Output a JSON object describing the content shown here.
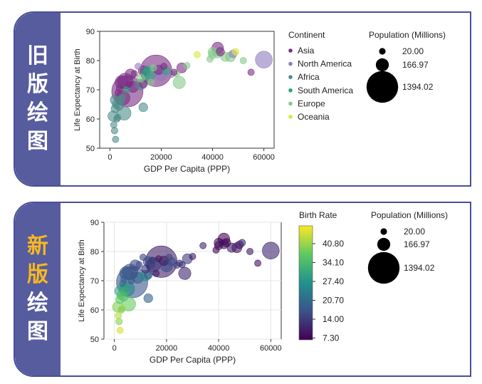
{
  "panels": {
    "old": {
      "label_chars": [
        "旧",
        "版",
        "绘",
        "图"
      ]
    },
    "new": {
      "label_chars": [
        "新",
        "版",
        "绘",
        "图"
      ]
    }
  },
  "colors": {
    "Asia": "#7b2d84",
    "North America": "#8f7cbf",
    "Africa": "#4d8c8a",
    "South America": "#2aa77f",
    "Europe": "#86c98a",
    "Oceania": "#d8e83c",
    "frame": "#4a4f9a"
  },
  "chart_data": [
    {
      "id": "old",
      "type": "scatter",
      "xlabel": "GDP Per Capita  (PPP)",
      "ylabel": "Life Expectancy at Birth",
      "xlim": [
        -4000,
        64000
      ],
      "ylim": [
        50,
        90
      ],
      "xticks": [
        0,
        20000,
        40000,
        60000
      ],
      "yticks": [
        50,
        60,
        70,
        80,
        90
      ],
      "color_by": "continent",
      "legend": {
        "title": "Continent",
        "position": "right",
        "entries": [
          "Asia",
          "North America",
          "Africa",
          "South America",
          "Europe",
          "Oceania"
        ]
      },
      "size_legend": {
        "title": "Population (Millions)",
        "labels": [
          "20.00",
          "166.97",
          "1394.02"
        ]
      }
    },
    {
      "id": "new",
      "type": "scatter",
      "xlabel": "GDP Per Capita  (PPP)",
      "ylabel": "Life Expectancy at Birth",
      "xlim": [
        -4000,
        64000
      ],
      "ylim": [
        50,
        90
      ],
      "xticks": [
        0,
        20000,
        40000,
        60000
      ],
      "yticks": [
        50,
        60,
        70,
        80,
        90
      ],
      "color_by": "birth_rate",
      "colorbar": {
        "title": "Birth Rate",
        "min": 7.3,
        "max": 47.5,
        "tick_labels": [
          "40.80",
          "34.10",
          "27.40",
          "20.70",
          "14.00",
          "7.30"
        ],
        "colors": [
          "#440154",
          "#3b528b",
          "#21918c",
          "#5ec962",
          "#fde725"
        ]
      },
      "size_legend": {
        "title": "Population (Millions)",
        "labels": [
          "20.00",
          "166.97",
          "1394.02"
        ]
      }
    }
  ],
  "points": [
    {
      "gdp": 18000,
      "life": 76.5,
      "pop": 1394,
      "continent": "Asia",
      "birth": 11
    },
    {
      "gdp": 6800,
      "life": 69.5,
      "pop": 1366,
      "continent": "Asia",
      "birth": 18
    },
    {
      "gdp": 6000,
      "life": 73,
      "pop": 270,
      "continent": "Asia",
      "birth": 17
    },
    {
      "gdp": 60000,
      "life": 80.3,
      "pop": 330,
      "continent": "North America",
      "birth": 12
    },
    {
      "gdp": 15000,
      "life": 75.5,
      "pop": 212,
      "continent": "South America",
      "birth": 14
    },
    {
      "gdp": 5000,
      "life": 67.2,
      "pop": 217,
      "continent": "Asia",
      "birth": 25
    },
    {
      "gdp": 5500,
      "life": 62,
      "pop": 201,
      "continent": "Africa",
      "birth": 38
    },
    {
      "gdp": 4500,
      "life": 72.6,
      "pop": 163,
      "continent": "Asia",
      "birth": 18
    },
    {
      "gdp": 27000,
      "life": 72.5,
      "pop": 145,
      "continent": "Europe",
      "birth": 12
    },
    {
      "gdp": 20000,
      "life": 75,
      "pop": 128,
      "continent": "North America",
      "birth": 17
    },
    {
      "gdp": 42000,
      "life": 84.3,
      "pop": 126,
      "continent": "Asia",
      "birth": 7.3
    },
    {
      "gdp": 2300,
      "life": 66.5,
      "pop": 112,
      "continent": "Africa",
      "birth": 31
    },
    {
      "gdp": 9000,
      "life": 71,
      "pop": 108,
      "continent": "Asia",
      "birth": 20
    },
    {
      "gdp": 8000,
      "life": 75.3,
      "pop": 96,
      "continent": "Asia",
      "birth": 16
    },
    {
      "gdp": 12000,
      "life": 71.8,
      "pop": 100,
      "continent": "Africa",
      "birth": 26
    },
    {
      "gdp": 1200,
      "life": 61,
      "pop": 87,
      "continent": "Africa",
      "birth": 40
    },
    {
      "gdp": 47000,
      "life": 81.3,
      "pop": 83,
      "continent": "Europe",
      "birth": 9
    },
    {
      "gdp": 13000,
      "life": 76.5,
      "pop": 82,
      "continent": "Asia",
      "birth": 17
    },
    {
      "gdp": 28000,
      "life": 77.5,
      "pop": 82,
      "continent": "Asia",
      "birth": 15
    },
    {
      "gdp": 19000,
      "life": 76.8,
      "pop": 69,
      "continent": "Asia",
      "birth": 10
    },
    {
      "gdp": 45000,
      "life": 81.3,
      "pop": 67,
      "continent": "Europe",
      "birth": 11
    },
    {
      "gdp": 42000,
      "life": 82.5,
      "pop": 67,
      "continent": "Europe",
      "birth": 11
    },
    {
      "gdp": 40000,
      "life": 83,
      "pop": 60,
      "continent": "Europe",
      "birth": 7.5
    },
    {
      "gdp": 3500,
      "life": 64.5,
      "pop": 58,
      "continent": "Africa",
      "birth": 36
    },
    {
      "gdp": 13000,
      "life": 64,
      "pop": 58,
      "continent": "Africa",
      "birth": 20
    },
    {
      "gdp": 14000,
      "life": 75.6,
      "pop": 50,
      "continent": "South America",
      "birth": 15
    },
    {
      "gdp": 43000,
      "life": 83,
      "pop": 51,
      "continent": "Asia",
      "birth": 7.5
    },
    {
      "gdp": 4000,
      "life": 66.3,
      "pop": 53,
      "continent": "Africa",
      "birth": 33
    },
    {
      "gdp": 2500,
      "life": 65,
      "pop": 45,
      "continent": "Africa",
      "birth": 35
    },
    {
      "gdp": 22000,
      "life": 76.5,
      "pop": 45,
      "continent": "South America",
      "birth": 17
    },
    {
      "gdp": 13000,
      "life": 72,
      "pop": 45,
      "continent": "Asia",
      "birth": 18
    },
    {
      "gdp": 2000,
      "life": 63.5,
      "pop": 42,
      "continent": "Africa",
      "birth": 37
    },
    {
      "gdp": 40000,
      "life": 82,
      "pop": 46,
      "continent": "Europe",
      "birth": 9
    },
    {
      "gdp": 12000,
      "life": 74,
      "pop": 44,
      "continent": "Europe",
      "birth": 13
    },
    {
      "gdp": 48000,
      "life": 82.3,
      "pop": 38,
      "continent": "North America",
      "birth": 10
    },
    {
      "gdp": 49000,
      "life": 83,
      "pop": 25,
      "continent": "Oceania",
      "birth": 12
    },
    {
      "gdp": 1800,
      "life": 56,
      "pop": 22,
      "continent": "Africa",
      "birth": 40
    },
    {
      "gdp": 2200,
      "life": 53,
      "pop": 20,
      "continent": "Africa",
      "birth": 45
    },
    {
      "gdp": 3000,
      "life": 60.5,
      "pop": 20,
      "continent": "Africa",
      "birth": 42
    },
    {
      "gdp": 2700,
      "life": 60,
      "pop": 20,
      "continent": "Africa",
      "birth": 39
    },
    {
      "gdp": 1500,
      "life": 58,
      "pop": 20,
      "continent": "Africa",
      "birth": 43
    },
    {
      "gdp": 3200,
      "life": 69,
      "pop": 20,
      "continent": "Asia",
      "birth": 22
    },
    {
      "gdp": 6500,
      "life": 70,
      "pop": 20,
      "continent": "South America",
      "birth": 19
    },
    {
      "gdp": 17000,
      "life": 77.5,
      "pop": 20,
      "continent": "Europe",
      "birth": 10
    },
    {
      "gdp": 24000,
      "life": 75.3,
      "pop": 20,
      "continent": "North America",
      "birth": 16
    },
    {
      "gdp": 30000,
      "life": 78.3,
      "pop": 20,
      "continent": "Europe",
      "birth": 10
    },
    {
      "gdp": 34000,
      "life": 82,
      "pop": 20,
      "continent": "Oceania",
      "birth": 12
    },
    {
      "gdp": 52000,
      "life": 80,
      "pop": 20,
      "continent": "Europe",
      "birth": 10
    },
    {
      "gdp": 55000,
      "life": 76,
      "pop": 20,
      "continent": "Asia",
      "birth": 9
    },
    {
      "gdp": 39000,
      "life": 80.5,
      "pop": 20,
      "continent": "Europe",
      "birth": 8
    },
    {
      "gdp": 7500,
      "life": 72,
      "pop": 20,
      "continent": "Asia",
      "birth": 18
    },
    {
      "gdp": 14500,
      "life": 77,
      "pop": 20,
      "continent": "South America",
      "birth": 14
    },
    {
      "gdp": 11000,
      "life": 78,
      "pop": 20,
      "continent": "North America",
      "birth": 15
    },
    {
      "gdp": 9500,
      "life": 75.5,
      "pop": 20,
      "continent": "Asia",
      "birth": 17
    },
    {
      "gdp": 4800,
      "life": 67.5,
      "pop": 20,
      "continent": "Africa",
      "birth": 30
    },
    {
      "gdp": 3700,
      "life": 70.5,
      "pop": 20,
      "continent": "Asia",
      "birth": 20
    },
    {
      "gdp": 26000,
      "life": 75.5,
      "pop": 20,
      "continent": "Europe",
      "birth": 11
    },
    {
      "gdp": 25000,
      "life": 76,
      "pop": 20,
      "continent": "Asia",
      "birth": 14
    },
    {
      "gdp": 16000,
      "life": 72.5,
      "pop": 20,
      "continent": "Europe",
      "birth": 11
    },
    {
      "gdp": 21000,
      "life": 78,
      "pop": 20,
      "continent": "Asia",
      "birth": 16
    }
  ]
}
